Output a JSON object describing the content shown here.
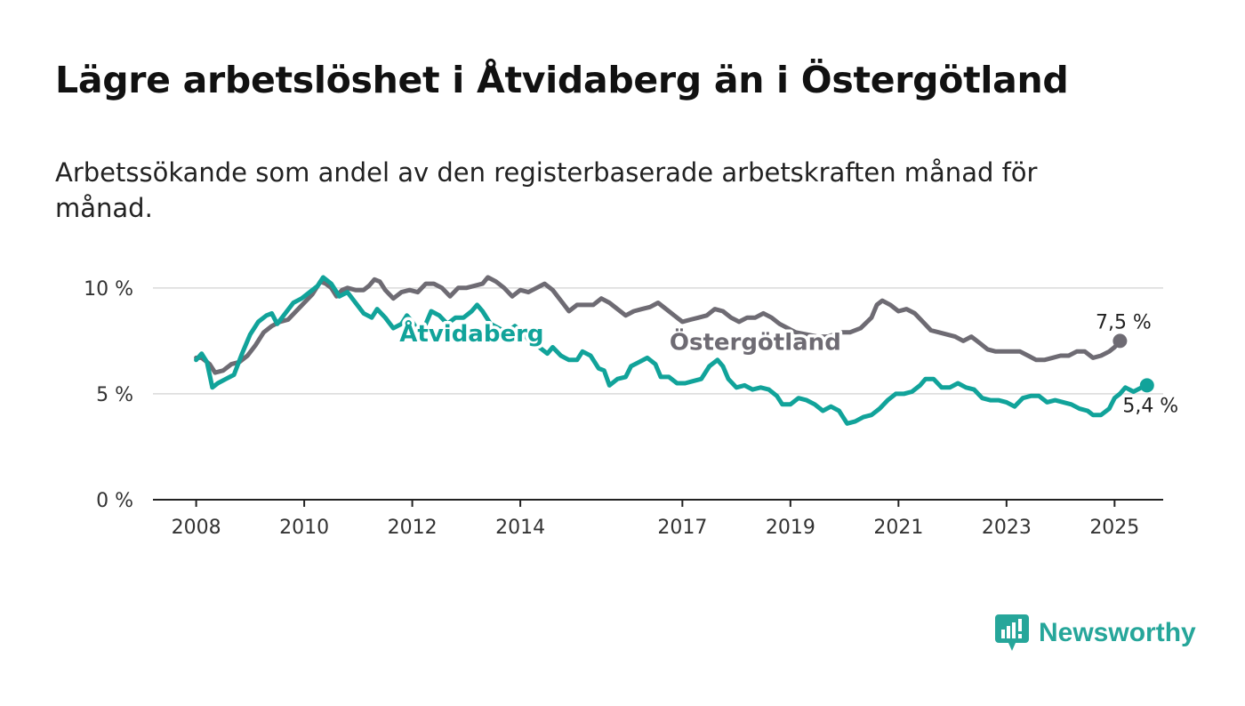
{
  "header": {
    "title": "Lägre arbetslöshet i Åtvidaberg än i Östergötland",
    "subtitle": "Arbetssökande som andel av den registerbaserade arbetskraften månad för månad."
  },
  "brand": {
    "name": "Newsworthy",
    "icon": "newsworthy-logo-icon",
    "color": "#26a69a"
  },
  "chart_data": {
    "type": "line",
    "title": "Lägre arbetslöshet i Åtvidaberg än i Östergötland",
    "subtitle": "Arbetssökande som andel av den registerbaserade arbetskraften månad för månad.",
    "xlabel": "",
    "ylabel": "",
    "x_range": [
      2007.2,
      2025.9
    ],
    "ylim": [
      0,
      11
    ],
    "x_ticks": [
      {
        "value": 2008,
        "label": "2008"
      },
      {
        "value": 2010,
        "label": "2010"
      },
      {
        "value": 2012,
        "label": "2012"
      },
      {
        "value": 2014,
        "label": "2014"
      },
      {
        "value": 2017,
        "label": "2017"
      },
      {
        "value": 2019,
        "label": "2019"
      },
      {
        "value": 2021,
        "label": "2021"
      },
      {
        "value": 2023,
        "label": "2023"
      },
      {
        "value": 2025,
        "label": "2025"
      }
    ],
    "y_ticks": [
      {
        "value": 0,
        "label": "0 %"
      },
      {
        "value": 5,
        "label": "5 %"
      },
      {
        "value": 10,
        "label": "10 %"
      }
    ],
    "grid": true,
    "series": [
      {
        "name": "Östergötland",
        "color": "#6e6b73",
        "end_label": "7,5 %",
        "points": [
          [
            2008.0,
            6.7
          ],
          [
            2008.1,
            6.7
          ],
          [
            2008.25,
            6.4
          ],
          [
            2008.35,
            6.0
          ],
          [
            2008.5,
            6.1
          ],
          [
            2008.65,
            6.4
          ],
          [
            2008.8,
            6.5
          ],
          [
            2008.95,
            6.8
          ],
          [
            2009.1,
            7.3
          ],
          [
            2009.25,
            7.9
          ],
          [
            2009.4,
            8.2
          ],
          [
            2009.55,
            8.4
          ],
          [
            2009.7,
            8.5
          ],
          [
            2009.85,
            8.9
          ],
          [
            2010.0,
            9.3
          ],
          [
            2010.15,
            9.7
          ],
          [
            2010.3,
            10.3
          ],
          [
            2010.4,
            10.2
          ],
          [
            2010.5,
            10.0
          ],
          [
            2010.6,
            9.6
          ],
          [
            2010.7,
            9.9
          ],
          [
            2010.8,
            10.0
          ],
          [
            2010.95,
            9.9
          ],
          [
            2011.1,
            9.9
          ],
          [
            2011.2,
            10.1
          ],
          [
            2011.3,
            10.4
          ],
          [
            2011.4,
            10.3
          ],
          [
            2011.5,
            9.9
          ],
          [
            2011.65,
            9.5
          ],
          [
            2011.8,
            9.8
          ],
          [
            2011.95,
            9.9
          ],
          [
            2012.1,
            9.8
          ],
          [
            2012.25,
            10.2
          ],
          [
            2012.4,
            10.2
          ],
          [
            2012.55,
            10.0
          ],
          [
            2012.7,
            9.6
          ],
          [
            2012.85,
            10.0
          ],
          [
            2013.0,
            10.0
          ],
          [
            2013.15,
            10.1
          ],
          [
            2013.3,
            10.2
          ],
          [
            2013.4,
            10.5
          ],
          [
            2013.55,
            10.3
          ],
          [
            2013.7,
            10.0
          ],
          [
            2013.85,
            9.6
          ],
          [
            2014.0,
            9.9
          ],
          [
            2014.15,
            9.8
          ],
          [
            2014.3,
            10.0
          ],
          [
            2014.45,
            10.2
          ],
          [
            2014.6,
            9.9
          ],
          [
            2014.75,
            9.4
          ],
          [
            2014.9,
            8.9
          ],
          [
            2015.05,
            9.2
          ],
          [
            2015.2,
            9.2
          ],
          [
            2015.35,
            9.2
          ],
          [
            2015.5,
            9.5
          ],
          [
            2015.65,
            9.3
          ],
          [
            2015.8,
            9.0
          ],
          [
            2015.95,
            8.7
          ],
          [
            2016.1,
            8.9
          ],
          [
            2016.25,
            9.0
          ],
          [
            2016.4,
            9.1
          ],
          [
            2016.55,
            9.3
          ],
          [
            2016.7,
            9.0
          ],
          [
            2016.85,
            8.7
          ],
          [
            2017.0,
            8.4
          ],
          [
            2017.15,
            8.5
          ],
          [
            2017.3,
            8.6
          ],
          [
            2017.45,
            8.7
          ],
          [
            2017.6,
            9.0
          ],
          [
            2017.75,
            8.9
          ],
          [
            2017.9,
            8.6
          ],
          [
            2018.05,
            8.4
          ],
          [
            2018.2,
            8.6
          ],
          [
            2018.35,
            8.6
          ],
          [
            2018.5,
            8.8
          ],
          [
            2018.65,
            8.6
          ],
          [
            2018.8,
            8.3
          ],
          [
            2018.95,
            8.1
          ],
          [
            2019.1,
            7.9
          ],
          [
            2019.3,
            7.8
          ],
          [
            2019.5,
            7.7
          ],
          [
            2019.7,
            7.7
          ],
          [
            2019.9,
            7.9
          ],
          [
            2020.1,
            7.9
          ],
          [
            2020.3,
            8.1
          ],
          [
            2020.5,
            8.6
          ],
          [
            2020.6,
            9.2
          ],
          [
            2020.7,
            9.4
          ],
          [
            2020.85,
            9.2
          ],
          [
            2021.0,
            8.9
          ],
          [
            2021.15,
            9.0
          ],
          [
            2021.3,
            8.8
          ],
          [
            2021.45,
            8.4
          ],
          [
            2021.6,
            8.0
          ],
          [
            2021.75,
            7.9
          ],
          [
            2021.9,
            7.8
          ],
          [
            2022.05,
            7.7
          ],
          [
            2022.2,
            7.5
          ],
          [
            2022.35,
            7.7
          ],
          [
            2022.5,
            7.4
          ],
          [
            2022.65,
            7.1
          ],
          [
            2022.8,
            7.0
          ],
          [
            2022.95,
            7.0
          ],
          [
            2023.1,
            7.0
          ],
          [
            2023.25,
            7.0
          ],
          [
            2023.4,
            6.8
          ],
          [
            2023.55,
            6.6
          ],
          [
            2023.7,
            6.6
          ],
          [
            2023.85,
            6.7
          ],
          [
            2024.0,
            6.8
          ],
          [
            2024.15,
            6.8
          ],
          [
            2024.3,
            7.0
          ],
          [
            2024.45,
            7.0
          ],
          [
            2024.6,
            6.7
          ],
          [
            2024.75,
            6.8
          ],
          [
            2024.9,
            7.0
          ],
          [
            2025.0,
            7.2
          ],
          [
            2025.1,
            7.5
          ]
        ]
      },
      {
        "name": "Åtvidaberg",
        "color": "#11a39a",
        "end_label": "5,4 %",
        "points": [
          [
            2008.0,
            6.6
          ],
          [
            2008.1,
            6.9
          ],
          [
            2008.2,
            6.5
          ],
          [
            2008.3,
            5.3
          ],
          [
            2008.4,
            5.5
          ],
          [
            2008.55,
            5.7
          ],
          [
            2008.7,
            5.9
          ],
          [
            2008.85,
            6.9
          ],
          [
            2009.0,
            7.8
          ],
          [
            2009.15,
            8.4
          ],
          [
            2009.3,
            8.7
          ],
          [
            2009.4,
            8.8
          ],
          [
            2009.5,
            8.3
          ],
          [
            2009.65,
            8.8
          ],
          [
            2009.8,
            9.3
          ],
          [
            2009.95,
            9.5
          ],
          [
            2010.1,
            9.8
          ],
          [
            2010.25,
            10.1
          ],
          [
            2010.35,
            10.5
          ],
          [
            2010.5,
            10.2
          ],
          [
            2010.65,
            9.6
          ],
          [
            2010.8,
            9.8
          ],
          [
            2010.95,
            9.3
          ],
          [
            2011.1,
            8.8
          ],
          [
            2011.25,
            8.6
          ],
          [
            2011.35,
            9.0
          ],
          [
            2011.5,
            8.6
          ],
          [
            2011.65,
            8.1
          ],
          [
            2011.8,
            8.3
          ],
          [
            2011.9,
            8.7
          ],
          [
            2012.0,
            8.4
          ],
          [
            2012.1,
            8.0
          ],
          [
            2012.25,
            8.3
          ],
          [
            2012.35,
            8.9
          ],
          [
            2012.5,
            8.7
          ],
          [
            2012.65,
            8.3
          ],
          [
            2012.8,
            8.6
          ],
          [
            2012.95,
            8.6
          ],
          [
            2013.1,
            8.9
          ],
          [
            2013.2,
            9.2
          ],
          [
            2013.3,
            8.9
          ],
          [
            2013.45,
            8.3
          ],
          [
            2013.6,
            8.1
          ],
          [
            2013.75,
            7.9
          ],
          [
            2013.9,
            8.2
          ],
          [
            2014.05,
            7.9
          ],
          [
            2014.2,
            7.4
          ],
          [
            2014.35,
            7.2
          ],
          [
            2014.5,
            6.9
          ],
          [
            2014.6,
            7.2
          ],
          [
            2014.75,
            6.8
          ],
          [
            2014.9,
            6.6
          ],
          [
            2015.05,
            6.6
          ],
          [
            2015.15,
            7.0
          ],
          [
            2015.3,
            6.8
          ],
          [
            2015.45,
            6.2
          ],
          [
            2015.55,
            6.1
          ],
          [
            2015.65,
            5.4
          ],
          [
            2015.8,
            5.7
          ],
          [
            2015.95,
            5.8
          ],
          [
            2016.05,
            6.3
          ],
          [
            2016.2,
            6.5
          ],
          [
            2016.35,
            6.7
          ],
          [
            2016.5,
            6.4
          ],
          [
            2016.6,
            5.8
          ],
          [
            2016.75,
            5.8
          ],
          [
            2016.9,
            5.5
          ],
          [
            2017.05,
            5.5
          ],
          [
            2017.2,
            5.6
          ],
          [
            2017.35,
            5.7
          ],
          [
            2017.5,
            6.3
          ],
          [
            2017.65,
            6.6
          ],
          [
            2017.75,
            6.3
          ],
          [
            2017.85,
            5.7
          ],
          [
            2018.0,
            5.3
          ],
          [
            2018.15,
            5.4
          ],
          [
            2018.3,
            5.2
          ],
          [
            2018.45,
            5.3
          ],
          [
            2018.6,
            5.2
          ],
          [
            2018.75,
            4.9
          ],
          [
            2018.85,
            4.5
          ],
          [
            2019.0,
            4.5
          ],
          [
            2019.15,
            4.8
          ],
          [
            2019.3,
            4.7
          ],
          [
            2019.45,
            4.5
          ],
          [
            2019.6,
            4.2
          ],
          [
            2019.75,
            4.4
          ],
          [
            2019.9,
            4.2
          ],
          [
            2020.05,
            3.6
          ],
          [
            2020.2,
            3.7
          ],
          [
            2020.35,
            3.9
          ],
          [
            2020.5,
            4.0
          ],
          [
            2020.65,
            4.3
          ],
          [
            2020.8,
            4.7
          ],
          [
            2020.95,
            5.0
          ],
          [
            2021.1,
            5.0
          ],
          [
            2021.25,
            5.1
          ],
          [
            2021.4,
            5.4
          ],
          [
            2021.5,
            5.7
          ],
          [
            2021.65,
            5.7
          ],
          [
            2021.8,
            5.3
          ],
          [
            2021.95,
            5.3
          ],
          [
            2022.1,
            5.5
          ],
          [
            2022.25,
            5.3
          ],
          [
            2022.4,
            5.2
          ],
          [
            2022.55,
            4.8
          ],
          [
            2022.7,
            4.7
          ],
          [
            2022.85,
            4.7
          ],
          [
            2023.0,
            4.6
          ],
          [
            2023.15,
            4.4
          ],
          [
            2023.3,
            4.8
          ],
          [
            2023.45,
            4.9
          ],
          [
            2023.6,
            4.9
          ],
          [
            2023.75,
            4.6
          ],
          [
            2023.9,
            4.7
          ],
          [
            2024.05,
            4.6
          ],
          [
            2024.2,
            4.5
          ],
          [
            2024.35,
            4.3
          ],
          [
            2024.5,
            4.2
          ],
          [
            2024.6,
            4.0
          ],
          [
            2024.75,
            4.0
          ],
          [
            2024.9,
            4.3
          ],
          [
            2025.0,
            4.8
          ],
          [
            2025.1,
            5.0
          ],
          [
            2025.2,
            5.3
          ],
          [
            2025.35,
            5.1
          ],
          [
            2025.5,
            5.3
          ],
          [
            2025.6,
            5.4
          ]
        ]
      }
    ],
    "series_labels": [
      {
        "series": "Åtvidaberg",
        "text": "Åtvidaberg",
        "x": 2013.1,
        "y": 7.9
      },
      {
        "series": "Östergötland",
        "text": "Östergötland",
        "x": 2018.35,
        "y": 7.5
      }
    ]
  }
}
